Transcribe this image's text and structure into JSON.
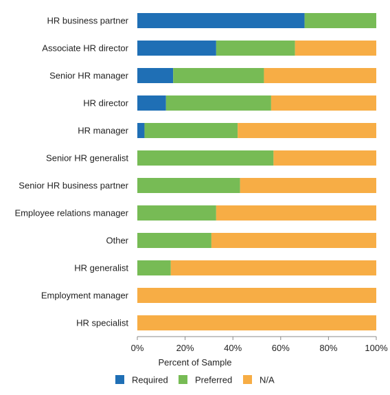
{
  "chart_data": {
    "type": "bar",
    "orientation": "horizontal",
    "stacked": true,
    "title": "",
    "xlabel": "Percent of Sample",
    "ylabel": "",
    "xlim": [
      0,
      100
    ],
    "x_ticks": [
      "0%",
      "20%",
      "40%",
      "60%",
      "80%",
      "100%"
    ],
    "x_tick_values": [
      0,
      20,
      40,
      60,
      80,
      100
    ],
    "grid": false,
    "legend_position": "bottom",
    "categories": [
      "HR business partner",
      "Associate HR director",
      "Senior HR manager",
      "HR director",
      "HR manager",
      "Senior HR generalist",
      "Senior HR business partner",
      "Employee relations manager",
      "Other",
      "HR generalist",
      "Employment manager",
      "HR specialist"
    ],
    "series": [
      {
        "name": "Required",
        "color": "#1f6fb5",
        "values": [
          70,
          33,
          15,
          12,
          3,
          0,
          0,
          0,
          0,
          0,
          0,
          0
        ]
      },
      {
        "name": "Preferred",
        "color": "#77bb55",
        "values": [
          30,
          33,
          38,
          44,
          39,
          57,
          43,
          33,
          31,
          14,
          0,
          0
        ]
      },
      {
        "name": "N/A",
        "color": "#f7ad45",
        "values": [
          0,
          34,
          47,
          44,
          58,
          43,
          57,
          67,
          69,
          86,
          100,
          100
        ]
      }
    ]
  }
}
